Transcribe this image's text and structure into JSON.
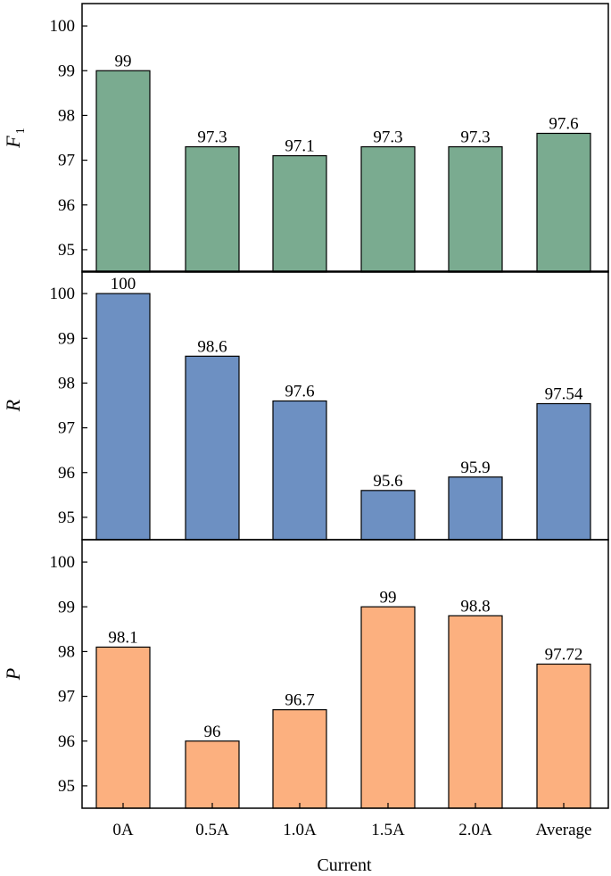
{
  "chart_data": [
    {
      "type": "bar",
      "panel": "top",
      "ylabel_main": "F",
      "ylabel_sub": "1",
      "categories": [
        "0A",
        "0.5A",
        "1.0A",
        "1.5A",
        "2.0A",
        "Average"
      ],
      "values": [
        99,
        97.3,
        97.1,
        97.3,
        97.3,
        97.6
      ],
      "value_labels": [
        "99",
        "97.3",
        "97.1",
        "97.3",
        "97.3",
        "97.6"
      ],
      "ylim": [
        94.5,
        100.5
      ],
      "yticks": [
        95,
        96,
        97,
        98,
        99,
        100
      ],
      "color": "#7aab90"
    },
    {
      "type": "bar",
      "panel": "middle",
      "ylabel_main": "R",
      "ylabel_sub": "",
      "categories": [
        "0A",
        "0.5A",
        "1.0A",
        "1.5A",
        "2.0A",
        "Average"
      ],
      "values": [
        100,
        98.6,
        97.6,
        95.6,
        95.9,
        97.54
      ],
      "value_labels": [
        "100",
        "98.6",
        "97.6",
        "95.6",
        "95.9",
        "97.54"
      ],
      "ylim": [
        94.5,
        100.5
      ],
      "yticks": [
        95,
        96,
        97,
        98,
        99,
        100
      ],
      "color": "#6d90c2"
    },
    {
      "type": "bar",
      "panel": "bottom",
      "ylabel_main": "P",
      "ylabel_sub": "",
      "categories": [
        "0A",
        "0.5A",
        "1.0A",
        "1.5A",
        "2.0A",
        "Average"
      ],
      "values": [
        98.1,
        96,
        96.7,
        99,
        98.8,
        97.72
      ],
      "value_labels": [
        "98.1",
        "96",
        "96.7",
        "99",
        "98.8",
        "97.72"
      ],
      "ylim": [
        94.5,
        100.5
      ],
      "yticks": [
        95,
        96,
        97,
        98,
        99,
        100
      ],
      "color": "#fcb07f"
    }
  ],
  "xlabel": "Current",
  "xtick_labels": [
    "0A",
    "0.5A",
    "1.0A",
    "1.5A",
    "2.0A",
    "Average"
  ]
}
